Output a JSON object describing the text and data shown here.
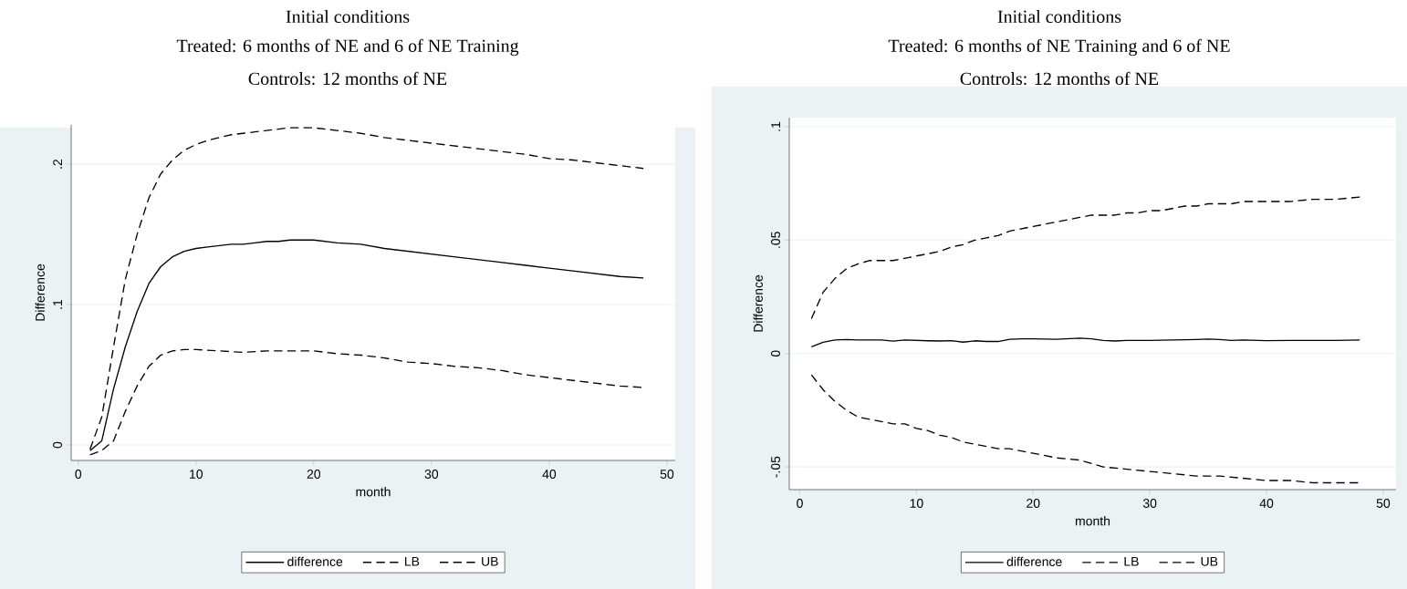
{
  "chart_data": [
    {
      "type": "line",
      "title": "Initial conditions",
      "subtitle": "Treated: 6 months of NE and 6 of NE Training",
      "annotations": [
        "Controls: 12 months of NE"
      ],
      "xlabel": "month",
      "ylabel": "Difference",
      "xlim": [
        -0.6,
        50.7
      ],
      "ylim": [
        -0.011,
        0.228
      ],
      "xticks": [
        0,
        10,
        20,
        30,
        40,
        50
      ],
      "yticks": [
        {
          "value": 0,
          "label": "0"
        },
        {
          "value": 0.1,
          "label": ".1"
        },
        {
          "value": 0.2,
          "label": ".2"
        }
      ],
      "grid": "y",
      "legend": "bottom",
      "series": [
        {
          "name": "difference",
          "color": "#000000",
          "line_style": "solid",
          "x": [
            1,
            2,
            3,
            4,
            5,
            6,
            7,
            8,
            9,
            10,
            11,
            12,
            13,
            14,
            15,
            16,
            17,
            18,
            19,
            20,
            22,
            24,
            26,
            28,
            30,
            32,
            34,
            36,
            38,
            40,
            42,
            44,
            46,
            48
          ],
          "values": [
            -0.004,
            0.003,
            0.04,
            0.07,
            0.095,
            0.115,
            0.127,
            0.134,
            0.138,
            0.14,
            0.141,
            0.142,
            0.143,
            0.143,
            0.144,
            0.145,
            0.145,
            0.146,
            0.146,
            0.146,
            0.144,
            0.143,
            0.14,
            0.138,
            0.136,
            0.134,
            0.132,
            0.13,
            0.128,
            0.126,
            0.124,
            0.122,
            0.12,
            0.119
          ]
        },
        {
          "name": "LB",
          "color": "#000000",
          "line_style": "dashed",
          "x": [
            1,
            2,
            3,
            4,
            5,
            6,
            7,
            8,
            9,
            10,
            12,
            14,
            16,
            18,
            20,
            22,
            24,
            26,
            28,
            30,
            32,
            34,
            36,
            38,
            40,
            42,
            44,
            46,
            48
          ],
          "values": [
            -0.007,
            -0.004,
            0.003,
            0.024,
            0.042,
            0.056,
            0.064,
            0.067,
            0.068,
            0.068,
            0.067,
            0.066,
            0.067,
            0.067,
            0.067,
            0.065,
            0.064,
            0.062,
            0.059,
            0.058,
            0.056,
            0.055,
            0.053,
            0.05,
            0.048,
            0.046,
            0.044,
            0.042,
            0.041
          ]
        },
        {
          "name": "UB",
          "color": "#000000",
          "line_style": "dashed",
          "x": [
            1,
            2,
            3,
            4,
            5,
            6,
            7,
            8,
            9,
            10,
            11,
            12,
            13,
            14,
            15,
            16,
            17,
            18,
            19,
            20,
            22,
            24,
            26,
            28,
            30,
            32,
            34,
            36,
            38,
            40,
            42,
            44,
            46,
            48
          ],
          "values": [
            -0.003,
            0.02,
            0.07,
            0.118,
            0.15,
            0.176,
            0.193,
            0.203,
            0.21,
            0.214,
            0.217,
            0.219,
            0.221,
            0.222,
            0.223,
            0.224,
            0.225,
            0.226,
            0.226,
            0.226,
            0.224,
            0.222,
            0.219,
            0.217,
            0.215,
            0.213,
            0.211,
            0.209,
            0.207,
            0.204,
            0.203,
            0.201,
            0.199,
            0.197
          ]
        }
      ]
    },
    {
      "type": "line",
      "title": "Initial conditions",
      "subtitle": "Treated: 6 months of NE Training and 6 of NE",
      "annotations": [
        "Controls: 12 months of NE"
      ],
      "xlabel": "month",
      "ylabel": "Difference",
      "xlim": [
        -0.9,
        51.1
      ],
      "ylim": [
        -0.06,
        0.104
      ],
      "xticks": [
        0,
        10,
        20,
        30,
        40,
        50
      ],
      "yticks": [
        {
          "value": -0.05,
          "label": "-.05"
        },
        {
          "value": 0,
          "label": "0"
        },
        {
          "value": 0.05,
          "label": ".05"
        },
        {
          "value": 0.1,
          "label": ".1"
        }
      ],
      "grid": "y",
      "legend": "bottom",
      "series": [
        {
          "name": "difference",
          "color": "#000000",
          "line_style": "solid",
          "x": [
            1,
            2,
            3,
            4,
            5,
            6,
            7,
            8,
            9,
            10,
            11,
            12,
            13,
            14,
            15,
            16,
            17,
            18,
            19,
            20,
            22,
            24,
            25,
            26,
            27,
            28,
            30,
            32,
            34,
            35,
            36,
            37,
            38,
            40,
            42,
            44,
            46,
            48
          ],
          "values": [
            0.003,
            0.005,
            0.006,
            0.0062,
            0.006,
            0.006,
            0.006,
            0.0055,
            0.006,
            0.0058,
            0.0056,
            0.0055,
            0.0057,
            0.005,
            0.0056,
            0.0053,
            0.0053,
            0.0063,
            0.0065,
            0.0065,
            0.0063,
            0.0068,
            0.0065,
            0.0058,
            0.0055,
            0.0058,
            0.0058,
            0.006,
            0.0062,
            0.0064,
            0.0062,
            0.0058,
            0.006,
            0.0057,
            0.0058,
            0.0058,
            0.0058,
            0.006
          ]
        },
        {
          "name": "LB",
          "color": "#000000",
          "line_style": "dashed",
          "x": [
            1,
            2,
            3,
            4,
            5,
            6,
            7,
            8,
            9,
            10,
            11,
            12,
            13,
            14,
            15,
            16,
            17,
            18,
            20,
            22,
            24,
            26,
            28,
            30,
            32,
            34,
            36,
            38,
            40,
            42,
            44,
            46,
            48
          ],
          "values": [
            -0.0094,
            -0.016,
            -0.021,
            -0.025,
            -0.028,
            -0.029,
            -0.03,
            -0.031,
            -0.031,
            -0.033,
            -0.034,
            -0.036,
            -0.037,
            -0.039,
            -0.04,
            -0.041,
            -0.042,
            -0.042,
            -0.044,
            -0.046,
            -0.047,
            -0.05,
            -0.051,
            -0.052,
            -0.053,
            -0.054,
            -0.054,
            -0.055,
            -0.056,
            -0.056,
            -0.057,
            -0.057,
            -0.057
          ]
        },
        {
          "name": "UB",
          "color": "#000000",
          "line_style": "dashed",
          "x": [
            1,
            2,
            3,
            4,
            5,
            6,
            7,
            8,
            9,
            10,
            11,
            12,
            13,
            14,
            15,
            16,
            17,
            18,
            19,
            20,
            21,
            22,
            23,
            24,
            25,
            26,
            27,
            28,
            29,
            30,
            31,
            32,
            33,
            34,
            35,
            36,
            37,
            38,
            40,
            42,
            44,
            46,
            48
          ],
          "values": [
            0.0154,
            0.027,
            0.033,
            0.0374,
            0.0395,
            0.041,
            0.041,
            0.041,
            0.042,
            0.043,
            0.044,
            0.045,
            0.047,
            0.048,
            0.05,
            0.051,
            0.052,
            0.054,
            0.055,
            0.056,
            0.057,
            0.058,
            0.059,
            0.06,
            0.061,
            0.061,
            0.061,
            0.062,
            0.062,
            0.063,
            0.063,
            0.064,
            0.065,
            0.065,
            0.066,
            0.066,
            0.066,
            0.067,
            0.067,
            0.067,
            0.068,
            0.068,
            0.069
          ]
        }
      ]
    }
  ]
}
